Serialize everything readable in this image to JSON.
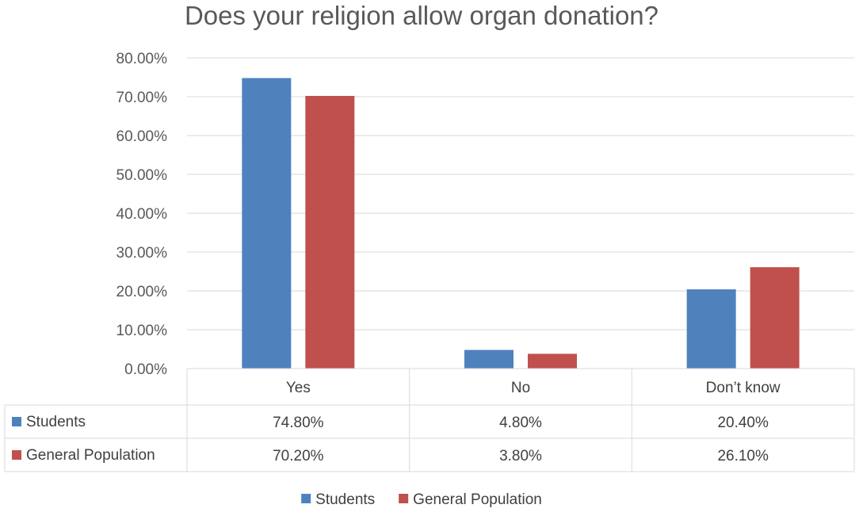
{
  "chart_data": {
    "type": "bar",
    "title": "Does your religion allow organ donation?",
    "categories": [
      "Yes",
      "No",
      "Don’t know"
    ],
    "series": [
      {
        "name": "Students",
        "values": [
          74.8,
          4.8,
          20.4
        ],
        "labels": [
          "74.80%",
          "4.80%",
          "20.40%"
        ],
        "color": "#4F81BD"
      },
      {
        "name": "General Population",
        "values": [
          70.2,
          3.8,
          26.1
        ],
        "labels": [
          "70.20%",
          "3.80%",
          "26.10%"
        ],
        "color": "#C0504D"
      }
    ],
    "ylim": [
      0,
      80
    ],
    "y_ticks": [
      0,
      10,
      20,
      30,
      40,
      50,
      60,
      70,
      80
    ],
    "y_tick_labels": [
      "0.00%",
      "10.00%",
      "20.00%",
      "30.00%",
      "40.00%",
      "50.00%",
      "60.00%",
      "70.00%",
      "80.00%"
    ],
    "grid": true,
    "data_table": true,
    "legend_position": "bottom",
    "colors": {
      "gridline": "#D9D9D9",
      "text": "#595959"
    }
  }
}
